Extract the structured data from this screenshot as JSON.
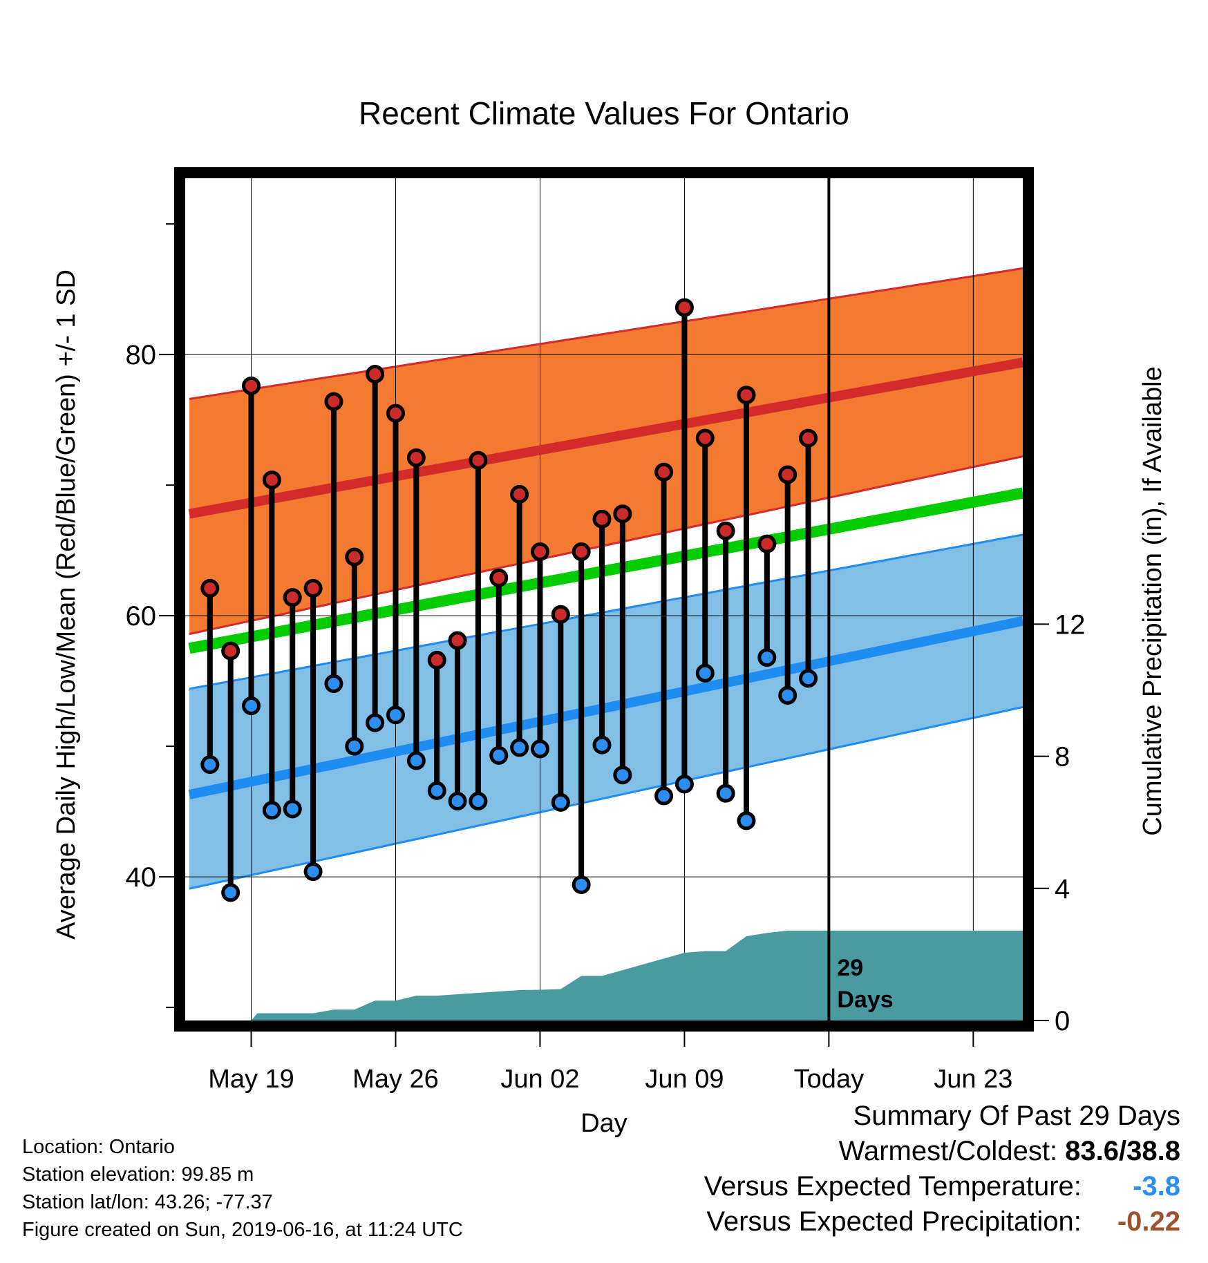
{
  "chart_data": {
    "type": "line",
    "title": "Recent Climate Values For Ontario",
    "xlabel": "Day",
    "ylabel_left": "Average Daily High/Low/Mean (Red/Blue/Green) +/- 1 SD",
    "ylabel_right": "Cumulative Precipitation (in), If Available",
    "x_tick_labels": [
      "May 19",
      "May 26",
      "Jun 02",
      "Jun 09",
      "Today",
      "Jun 23"
    ],
    "x_tick_days": [
      19,
      26,
      33,
      40,
      47,
      54
    ],
    "x_range": [
      15.8,
      56.4
    ],
    "today_day": 47,
    "today_label_number": "29",
    "today_label_text": "Days",
    "y_left_ticks": [
      40,
      60,
      80
    ],
    "y_left_range": [
      29,
      93.5
    ],
    "y_right_ticks": [
      0,
      4,
      8,
      12
    ],
    "y_right_range": [
      0,
      25.5
    ],
    "grid": true,
    "normals": {
      "days": [
        16,
        56.4
      ],
      "high_mean": [
        67.8,
        79.4
      ],
      "high_upper": [
        76.6,
        86.6
      ],
      "high_lower": [
        58.6,
        72.2
      ],
      "avg_mean": [
        57.5,
        69.4
      ],
      "low_mean": [
        46.3,
        59.6
      ],
      "low_upper": [
        54.4,
        66.2
      ],
      "low_lower": [
        39.1,
        53.0
      ]
    },
    "daily": {
      "days": [
        17,
        18,
        19,
        20,
        21,
        22,
        23,
        24,
        25,
        26,
        27,
        28,
        29,
        30,
        31,
        32,
        33,
        34,
        35,
        36,
        37,
        38,
        39,
        40,
        41,
        42,
        43,
        44,
        45,
        46
      ],
      "highs": [
        62.1,
        57.3,
        77.6,
        70.4,
        61.4,
        62.1,
        76.4,
        64.5,
        78.5,
        75.5,
        72.1,
        56.6,
        58.1,
        71.9,
        62.9,
        69.3,
        64.9,
        60.1,
        64.9,
        67.4,
        67.8,
        null,
        71.0,
        83.6,
        73.6,
        66.5,
        76.9,
        65.5,
        70.8,
        73.6
      ],
      "lows": [
        48.6,
        38.8,
        53.1,
        45.1,
        45.2,
        40.4,
        54.8,
        50.0,
        51.8,
        52.4,
        48.9,
        46.6,
        45.8,
        45.8,
        49.3,
        49.9,
        49.8,
        45.7,
        39.4,
        50.1,
        47.8,
        null,
        46.2,
        47.1,
        55.6,
        46.4,
        44.3,
        56.8,
        53.9,
        55.2
      ]
    },
    "precip": {
      "days": [
        16,
        19,
        19.3,
        22,
        23,
        24,
        25,
        26,
        27,
        28,
        32,
        33,
        34,
        35,
        36,
        40,
        41,
        42,
        43,
        44,
        45,
        56.4
      ],
      "cumulative": [
        0,
        0,
        0.22,
        0.22,
        0.33,
        0.33,
        0.6,
        0.6,
        0.75,
        0.75,
        0.92,
        0.93,
        0.95,
        1.35,
        1.35,
        2.05,
        2.1,
        2.1,
        2.55,
        2.65,
        2.72,
        2.72
      ]
    },
    "colors": {
      "high_band": "#f47a32",
      "high_mean": "#d42a2a",
      "high_band_edge": "#d42a2a",
      "low_band": "#82bfe6",
      "low_mean": "#1e8cf0",
      "low_band_edge": "#1e8cf0",
      "avg_mean": "#00cc00",
      "precip": "#4a9aa1",
      "high_dot": "#cc2b2b",
      "low_dot": "#2b8ef0"
    }
  },
  "footer": {
    "location": "Location: Ontario",
    "elevation": "Station elevation: 99.85 m",
    "latlon": "Station lat/lon: 43.26; -77.37",
    "created": "Figure created on Sun, 2019-06-16, at 11:24 UTC"
  },
  "summary": {
    "title": "Summary Of Past 29 Days",
    "warm_cold_label": "Warmest/Coldest:",
    "warm_cold_value": "83.6/38.8",
    "temp_label": "Versus Expected Temperature:",
    "temp_value": "-3.8",
    "temp_color": "#2b8ef0",
    "precip_label": "Versus Expected Precipitation:",
    "precip_value": "-0.22",
    "precip_color": "#a0522d"
  }
}
